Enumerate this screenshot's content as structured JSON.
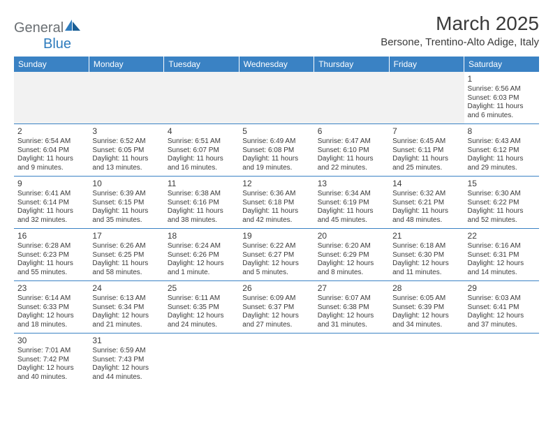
{
  "logo": {
    "text1": "General",
    "text2": "Blue"
  },
  "title": "March 2025",
  "location": "Bersone, Trentino-Alto Adige, Italy",
  "colors": {
    "header_bg": "#3a82c4",
    "header_fg": "#ffffff",
    "grid_line": "#3a82c4",
    "text": "#3a3a3a",
    "muted_bg": "#f2f2f2",
    "logo_gray": "#6a6f73",
    "logo_blue": "#2d7bbd"
  },
  "dow": [
    "Sunday",
    "Monday",
    "Tuesday",
    "Wednesday",
    "Thursday",
    "Friday",
    "Saturday"
  ],
  "weeks": [
    [
      null,
      null,
      null,
      null,
      null,
      null,
      {
        "n": "1",
        "sr": "Sunrise: 6:56 AM",
        "ss": "Sunset: 6:03 PM",
        "d1": "Daylight: 11 hours",
        "d2": "and 6 minutes."
      }
    ],
    [
      {
        "n": "2",
        "sr": "Sunrise: 6:54 AM",
        "ss": "Sunset: 6:04 PM",
        "d1": "Daylight: 11 hours",
        "d2": "and 9 minutes."
      },
      {
        "n": "3",
        "sr": "Sunrise: 6:52 AM",
        "ss": "Sunset: 6:05 PM",
        "d1": "Daylight: 11 hours",
        "d2": "and 13 minutes."
      },
      {
        "n": "4",
        "sr": "Sunrise: 6:51 AM",
        "ss": "Sunset: 6:07 PM",
        "d1": "Daylight: 11 hours",
        "d2": "and 16 minutes."
      },
      {
        "n": "5",
        "sr": "Sunrise: 6:49 AM",
        "ss": "Sunset: 6:08 PM",
        "d1": "Daylight: 11 hours",
        "d2": "and 19 minutes."
      },
      {
        "n": "6",
        "sr": "Sunrise: 6:47 AM",
        "ss": "Sunset: 6:10 PM",
        "d1": "Daylight: 11 hours",
        "d2": "and 22 minutes."
      },
      {
        "n": "7",
        "sr": "Sunrise: 6:45 AM",
        "ss": "Sunset: 6:11 PM",
        "d1": "Daylight: 11 hours",
        "d2": "and 25 minutes."
      },
      {
        "n": "8",
        "sr": "Sunrise: 6:43 AM",
        "ss": "Sunset: 6:12 PM",
        "d1": "Daylight: 11 hours",
        "d2": "and 29 minutes."
      }
    ],
    [
      {
        "n": "9",
        "sr": "Sunrise: 6:41 AM",
        "ss": "Sunset: 6:14 PM",
        "d1": "Daylight: 11 hours",
        "d2": "and 32 minutes."
      },
      {
        "n": "10",
        "sr": "Sunrise: 6:39 AM",
        "ss": "Sunset: 6:15 PM",
        "d1": "Daylight: 11 hours",
        "d2": "and 35 minutes."
      },
      {
        "n": "11",
        "sr": "Sunrise: 6:38 AM",
        "ss": "Sunset: 6:16 PM",
        "d1": "Daylight: 11 hours",
        "d2": "and 38 minutes."
      },
      {
        "n": "12",
        "sr": "Sunrise: 6:36 AM",
        "ss": "Sunset: 6:18 PM",
        "d1": "Daylight: 11 hours",
        "d2": "and 42 minutes."
      },
      {
        "n": "13",
        "sr": "Sunrise: 6:34 AM",
        "ss": "Sunset: 6:19 PM",
        "d1": "Daylight: 11 hours",
        "d2": "and 45 minutes."
      },
      {
        "n": "14",
        "sr": "Sunrise: 6:32 AM",
        "ss": "Sunset: 6:21 PM",
        "d1": "Daylight: 11 hours",
        "d2": "and 48 minutes."
      },
      {
        "n": "15",
        "sr": "Sunrise: 6:30 AM",
        "ss": "Sunset: 6:22 PM",
        "d1": "Daylight: 11 hours",
        "d2": "and 52 minutes."
      }
    ],
    [
      {
        "n": "16",
        "sr": "Sunrise: 6:28 AM",
        "ss": "Sunset: 6:23 PM",
        "d1": "Daylight: 11 hours",
        "d2": "and 55 minutes."
      },
      {
        "n": "17",
        "sr": "Sunrise: 6:26 AM",
        "ss": "Sunset: 6:25 PM",
        "d1": "Daylight: 11 hours",
        "d2": "and 58 minutes."
      },
      {
        "n": "18",
        "sr": "Sunrise: 6:24 AM",
        "ss": "Sunset: 6:26 PM",
        "d1": "Daylight: 12 hours",
        "d2": "and 1 minute."
      },
      {
        "n": "19",
        "sr": "Sunrise: 6:22 AM",
        "ss": "Sunset: 6:27 PM",
        "d1": "Daylight: 12 hours",
        "d2": "and 5 minutes."
      },
      {
        "n": "20",
        "sr": "Sunrise: 6:20 AM",
        "ss": "Sunset: 6:29 PM",
        "d1": "Daylight: 12 hours",
        "d2": "and 8 minutes."
      },
      {
        "n": "21",
        "sr": "Sunrise: 6:18 AM",
        "ss": "Sunset: 6:30 PM",
        "d1": "Daylight: 12 hours",
        "d2": "and 11 minutes."
      },
      {
        "n": "22",
        "sr": "Sunrise: 6:16 AM",
        "ss": "Sunset: 6:31 PM",
        "d1": "Daylight: 12 hours",
        "d2": "and 14 minutes."
      }
    ],
    [
      {
        "n": "23",
        "sr": "Sunrise: 6:14 AM",
        "ss": "Sunset: 6:33 PM",
        "d1": "Daylight: 12 hours",
        "d2": "and 18 minutes."
      },
      {
        "n": "24",
        "sr": "Sunrise: 6:13 AM",
        "ss": "Sunset: 6:34 PM",
        "d1": "Daylight: 12 hours",
        "d2": "and 21 minutes."
      },
      {
        "n": "25",
        "sr": "Sunrise: 6:11 AM",
        "ss": "Sunset: 6:35 PM",
        "d1": "Daylight: 12 hours",
        "d2": "and 24 minutes."
      },
      {
        "n": "26",
        "sr": "Sunrise: 6:09 AM",
        "ss": "Sunset: 6:37 PM",
        "d1": "Daylight: 12 hours",
        "d2": "and 27 minutes."
      },
      {
        "n": "27",
        "sr": "Sunrise: 6:07 AM",
        "ss": "Sunset: 6:38 PM",
        "d1": "Daylight: 12 hours",
        "d2": "and 31 minutes."
      },
      {
        "n": "28",
        "sr": "Sunrise: 6:05 AM",
        "ss": "Sunset: 6:39 PM",
        "d1": "Daylight: 12 hours",
        "d2": "and 34 minutes."
      },
      {
        "n": "29",
        "sr": "Sunrise: 6:03 AM",
        "ss": "Sunset: 6:41 PM",
        "d1": "Daylight: 12 hours",
        "d2": "and 37 minutes."
      }
    ],
    [
      {
        "n": "30",
        "sr": "Sunrise: 7:01 AM",
        "ss": "Sunset: 7:42 PM",
        "d1": "Daylight: 12 hours",
        "d2": "and 40 minutes."
      },
      {
        "n": "31",
        "sr": "Sunrise: 6:59 AM",
        "ss": "Sunset: 7:43 PM",
        "d1": "Daylight: 12 hours",
        "d2": "and 44 minutes."
      },
      null,
      null,
      null,
      null,
      null
    ]
  ]
}
